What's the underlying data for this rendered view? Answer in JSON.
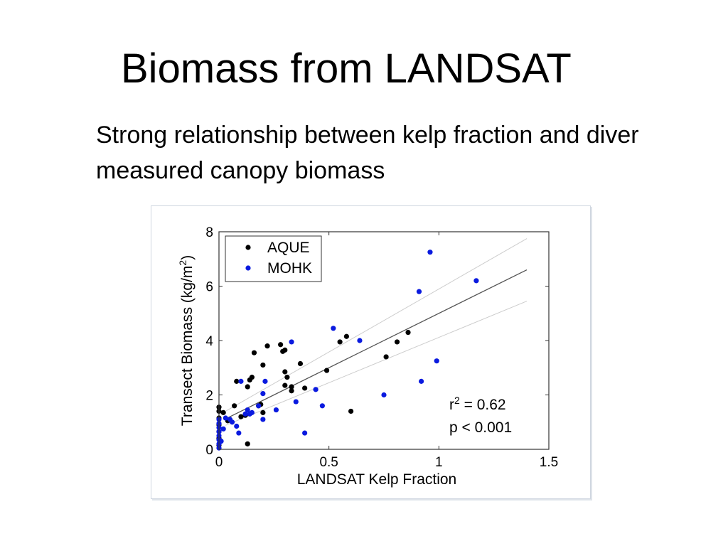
{
  "slide": {
    "title": "Biomass from LANDSAT",
    "subtitle": "Strong relationship between kelp fraction and diver measured canopy biomass"
  },
  "chart_data": {
    "type": "scatter",
    "title": "",
    "xlabel": "LANDSAT Kelp Fraction",
    "ylabel_main": "Transect Biomass (kg/m",
    "ylabel_sup": "2",
    "ylabel_end": ")",
    "xlim": [
      0,
      1.5
    ],
    "ylim": [
      0,
      8
    ],
    "xticks": [
      0,
      0.5,
      1,
      1.5
    ],
    "xtick_labels": [
      "0",
      "0.5",
      "1",
      "1.5"
    ],
    "yticks": [
      0,
      2,
      4,
      6,
      8
    ],
    "ytick_labels": [
      "0",
      "2",
      "4",
      "6",
      "8"
    ],
    "grid": false,
    "legend": {
      "placement": "top-left",
      "entries": [
        {
          "label": "AQUE",
          "color": "#000000"
        },
        {
          "label": "MOHK",
          "color": "#0a1adf"
        }
      ]
    },
    "annotation": {
      "r2_prefix": "r",
      "r2_sup": "2",
      "r2_value": " = 0.62",
      "p_text": "p < 0.001"
    },
    "fit_line": {
      "x": [
        0.03,
        1.4
      ],
      "y": [
        1.12,
        6.6
      ],
      "color": "#555555"
    },
    "upper_band": {
      "x": [
        0.03,
        1.4
      ],
      "y": [
        1.4,
        7.75
      ],
      "color": "#cccccc"
    },
    "lower_band": {
      "x": [
        0.03,
        1.4
      ],
      "y": [
        0.88,
        5.45
      ],
      "color": "#cccccc"
    },
    "series": [
      {
        "name": "AQUE",
        "color": "#000000",
        "points": [
          [
            0.0,
            0.15
          ],
          [
            0.0,
            0.4
          ],
          [
            0.0,
            0.65
          ],
          [
            0.0,
            0.9
          ],
          [
            0.0,
            1.15
          ],
          [
            0.0,
            1.4
          ],
          [
            0.0,
            1.55
          ],
          [
            0.02,
            1.35
          ],
          [
            0.04,
            1.05
          ],
          [
            0.07,
            1.6
          ],
          [
            0.08,
            2.5
          ],
          [
            0.1,
            1.2
          ],
          [
            0.12,
            1.25
          ],
          [
            0.13,
            2.3
          ],
          [
            0.13,
            0.2
          ],
          [
            0.14,
            2.55
          ],
          [
            0.15,
            2.65
          ],
          [
            0.16,
            3.55
          ],
          [
            0.18,
            1.6
          ],
          [
            0.19,
            1.65
          ],
          [
            0.2,
            1.35
          ],
          [
            0.2,
            3.1
          ],
          [
            0.22,
            3.8
          ],
          [
            0.28,
            3.85
          ],
          [
            0.29,
            3.6
          ],
          [
            0.3,
            3.65
          ],
          [
            0.3,
            2.35
          ],
          [
            0.3,
            2.85
          ],
          [
            0.31,
            2.65
          ],
          [
            0.33,
            2.3
          ],
          [
            0.33,
            2.15
          ],
          [
            0.37,
            3.15
          ],
          [
            0.39,
            2.25
          ],
          [
            0.49,
            2.9
          ],
          [
            0.55,
            3.95
          ],
          [
            0.58,
            4.15
          ],
          [
            0.6,
            1.4
          ],
          [
            0.76,
            3.4
          ],
          [
            0.81,
            3.95
          ],
          [
            0.86,
            4.3
          ]
        ]
      },
      {
        "name": "MOHK",
        "color": "#0a1adf",
        "points": [
          [
            0.0,
            0.05
          ],
          [
            0.0,
            0.2
          ],
          [
            0.0,
            0.35
          ],
          [
            0.0,
            0.5
          ],
          [
            0.0,
            0.65
          ],
          [
            0.0,
            0.8
          ],
          [
            0.0,
            0.95
          ],
          [
            0.0,
            1.1
          ],
          [
            0.01,
            0.3
          ],
          [
            0.02,
            0.75
          ],
          [
            0.03,
            1.15
          ],
          [
            0.05,
            1.1
          ],
          [
            0.06,
            1.0
          ],
          [
            0.08,
            0.85
          ],
          [
            0.09,
            0.6
          ],
          [
            0.1,
            2.5
          ],
          [
            0.12,
            1.3
          ],
          [
            0.13,
            1.45
          ],
          [
            0.14,
            1.3
          ],
          [
            0.15,
            1.35
          ],
          [
            0.18,
            1.6
          ],
          [
            0.2,
            1.1
          ],
          [
            0.2,
            2.05
          ],
          [
            0.21,
            2.5
          ],
          [
            0.26,
            1.45
          ],
          [
            0.33,
            3.95
          ],
          [
            0.35,
            1.75
          ],
          [
            0.39,
            0.6
          ],
          [
            0.44,
            2.2
          ],
          [
            0.47,
            1.6
          ],
          [
            0.52,
            4.45
          ],
          [
            0.64,
            4.0
          ],
          [
            0.75,
            2.0
          ],
          [
            0.91,
            5.8
          ],
          [
            0.92,
            2.5
          ],
          [
            0.96,
            7.25
          ],
          [
            0.99,
            3.25
          ],
          [
            1.17,
            6.2
          ]
        ]
      }
    ]
  }
}
